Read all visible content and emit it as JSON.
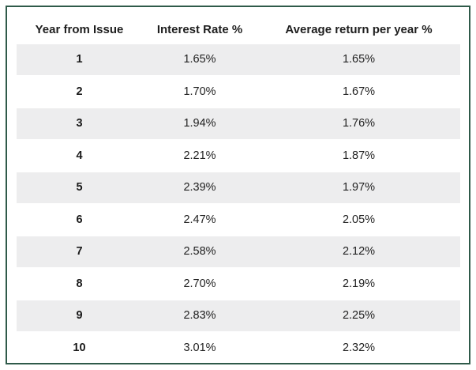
{
  "chart_data": {
    "type": "table",
    "columns": [
      "Year from Issue",
      "Interest Rate %",
      "Average return per year %"
    ],
    "rows": [
      {
        "year": "1",
        "rate": "1.65%",
        "avg": "1.65%"
      },
      {
        "year": "2",
        "rate": "1.70%",
        "avg": "1.67%"
      },
      {
        "year": "3",
        "rate": "1.94%",
        "avg": "1.76%"
      },
      {
        "year": "4",
        "rate": "2.21%",
        "avg": "1.87%"
      },
      {
        "year": "5",
        "rate": "2.39%",
        "avg": "1.97%"
      },
      {
        "year": "6",
        "rate": "2.47%",
        "avg": "2.05%"
      },
      {
        "year": "7",
        "rate": "2.58%",
        "avg": "2.12%"
      },
      {
        "year": "8",
        "rate": "2.70%",
        "avg": "2.19%"
      },
      {
        "year": "9",
        "rate": "2.83%",
        "avg": "2.25%"
      },
      {
        "year": "10",
        "rate": "3.01%",
        "avg": "2.32%"
      }
    ],
    "x": [
      1,
      2,
      3,
      4,
      5,
      6,
      7,
      8,
      9,
      10
    ],
    "series": [
      {
        "name": "Interest Rate %",
        "values": [
          1.65,
          1.7,
          1.94,
          2.21,
          2.39,
          2.47,
          2.58,
          2.7,
          2.83,
          3.01
        ]
      },
      {
        "name": "Average return per year %",
        "values": [
          1.65,
          1.67,
          1.76,
          1.87,
          1.97,
          2.05,
          2.12,
          2.19,
          2.25,
          2.32
        ]
      }
    ],
    "row_shading": "alternating",
    "colors": {
      "border": "#2f5a4a",
      "stripe": "#ededee",
      "text": "#222222"
    }
  }
}
